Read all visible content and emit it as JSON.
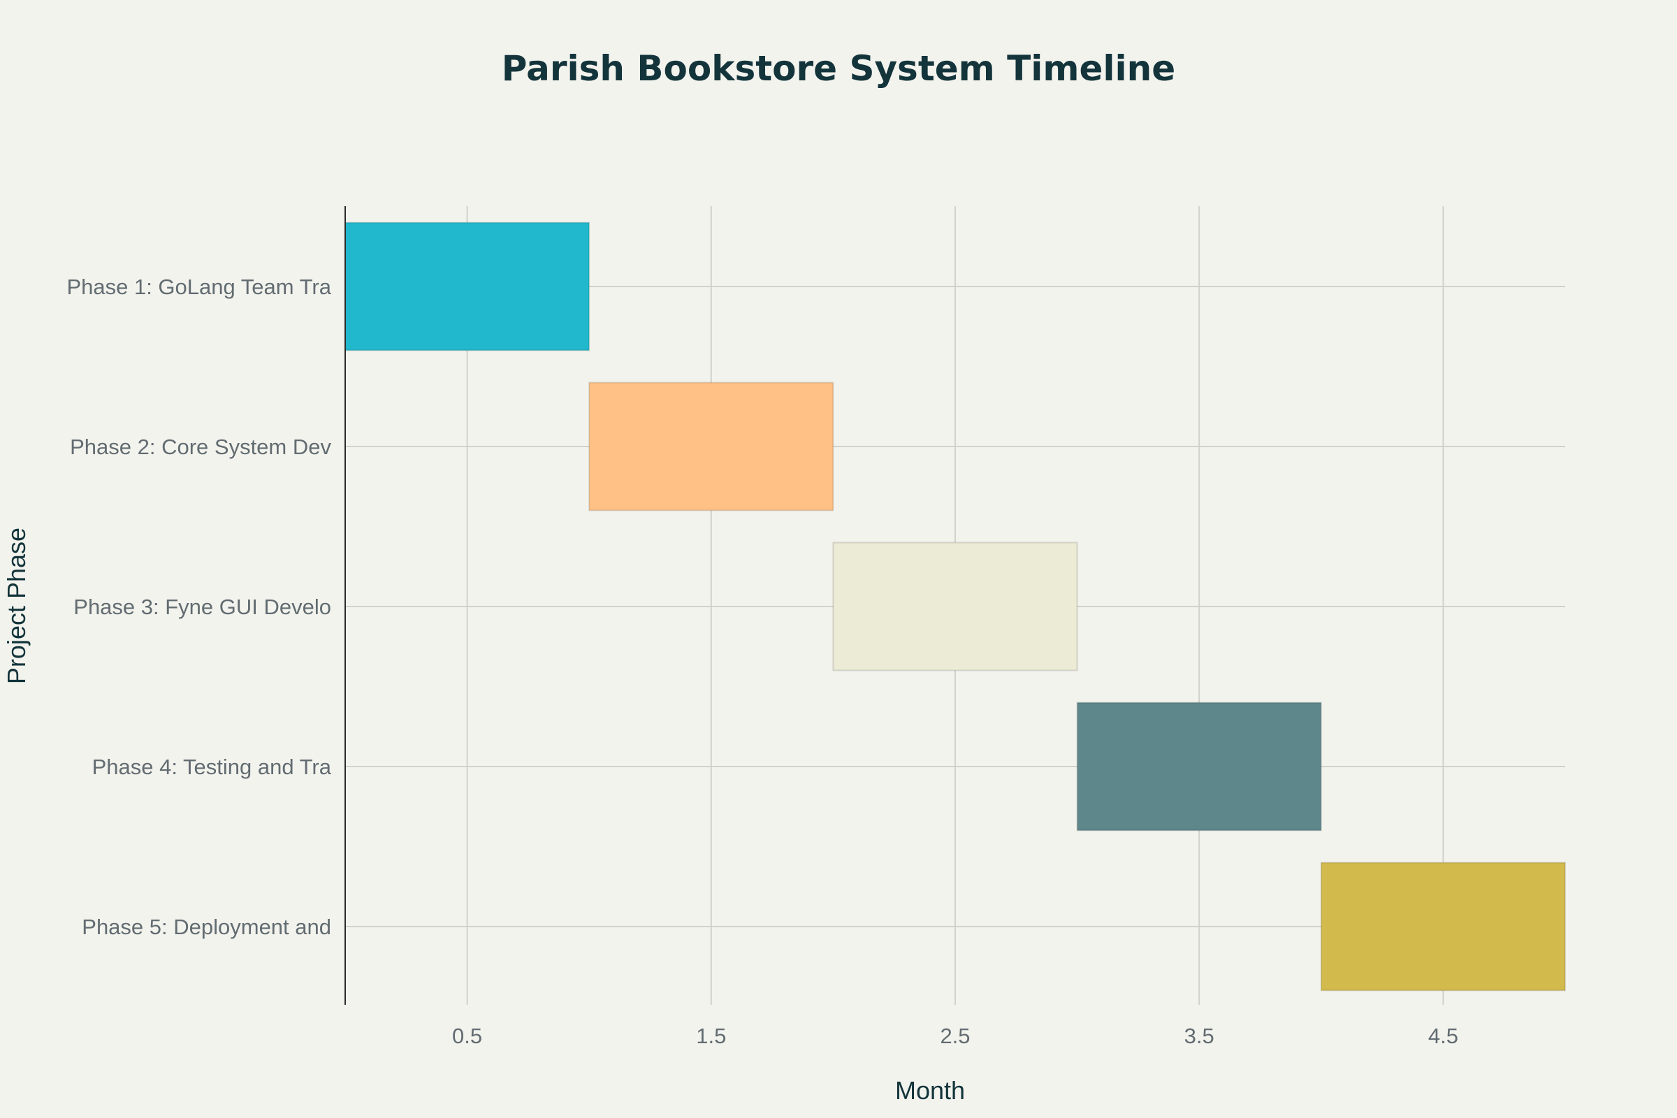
{
  "chart_data": {
    "type": "gantt",
    "title": "Parish Bookstore System Timeline",
    "xlabel": "Month",
    "ylabel": "Project Phase",
    "xlim": [
      0,
      5
    ],
    "x_ticks": [
      "0.5",
      "1.5",
      "2.5",
      "3.5",
      "4.5"
    ],
    "x_tick_values": [
      0.5,
      1.5,
      2.5,
      3.5,
      4.5
    ],
    "grid": true,
    "tasks": [
      {
        "label": "Phase 1: GoLang Team Tra",
        "start": 0,
        "end": 1,
        "color": "#21b8cd"
      },
      {
        "label": "Phase 2: Core System Dev",
        "start": 1,
        "end": 2,
        "color": "#ffc185"
      },
      {
        "label": "Phase 3: Fyne GUI Develo",
        "start": 2,
        "end": 3,
        "color": "#ecebd5"
      },
      {
        "label": "Phase 4: Testing and Tra",
        "start": 3,
        "end": 4,
        "color": "#5d878b"
      },
      {
        "label": "Phase 5: Deployment and",
        "start": 4,
        "end": 5,
        "color": "#d2ba4c"
      }
    ]
  }
}
